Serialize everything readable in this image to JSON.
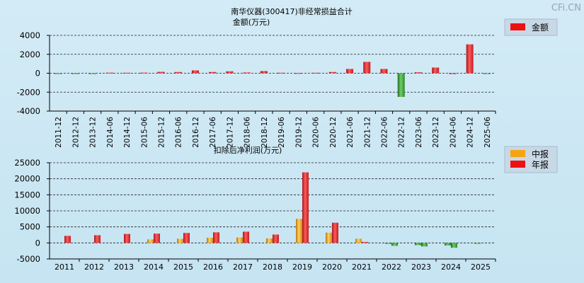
{
  "watermark": "CFi.CN",
  "chart_data": [
    {
      "type": "bar",
      "title": "南华仪器(300417)非经常损益合计",
      "subtitle": "金额(万元)",
      "ylim": [
        -4000,
        4000
      ],
      "yticks": [
        4000,
        2000,
        0,
        -2000,
        -4000
      ],
      "grid": true,
      "legend": "top-right",
      "categories": [
        "2011-12",
        "2012-12",
        "2013-12",
        "2014-06",
        "2014-12",
        "2015-06",
        "2015-12",
        "2016-06",
        "2016-12",
        "2017-06",
        "2017-12",
        "2018-06",
        "2018-12",
        "2019-06",
        "2019-12",
        "2020-06",
        "2020-12",
        "2021-06",
        "2021-12",
        "2022-06",
        "2022-12",
        "2023-06",
        "2023-12",
        "2024-06",
        "2024-12",
        "2025-06"
      ],
      "series": [
        {
          "name": "金额",
          "color": "#e8262a",
          "negative_color": "#3e9b3c",
          "values": [
            -20,
            -30,
            -40,
            60,
            50,
            60,
            150,
            130,
            300,
            130,
            200,
            80,
            230,
            50,
            30,
            50,
            130,
            450,
            1200,
            450,
            -2500,
            100,
            600,
            0,
            3050,
            -20
          ]
        }
      ]
    },
    {
      "type": "bar",
      "title": "扣除后净利润(万元)",
      "ylim": [
        -5000,
        25000
      ],
      "yticks": [
        25000,
        20000,
        15000,
        10000,
        5000,
        0,
        -5000
      ],
      "grid": true,
      "legend": "top-right",
      "categories": [
        "2011",
        "2012",
        "2013",
        "2014",
        "2015",
        "2016",
        "2017",
        "2018",
        "2019",
        "2020",
        "2021",
        "2022",
        "2023",
        "2024",
        "2025"
      ],
      "series": [
        {
          "name": "中报",
          "color": "#f0a020",
          "negative_color": "#3e9b3c",
          "values": [
            null,
            null,
            null,
            1100,
            1300,
            1600,
            1700,
            1400,
            7500,
            3200,
            1300,
            -300,
            -700,
            -800,
            -200
          ]
        },
        {
          "name": "年报",
          "color": "#e8262a",
          "negative_color": "#3e9b3c",
          "values": [
            2200,
            2400,
            2800,
            2900,
            3100,
            3300,
            3500,
            2600,
            22000,
            6300,
            300,
            -900,
            -1100,
            -1500,
            null
          ]
        }
      ]
    }
  ]
}
